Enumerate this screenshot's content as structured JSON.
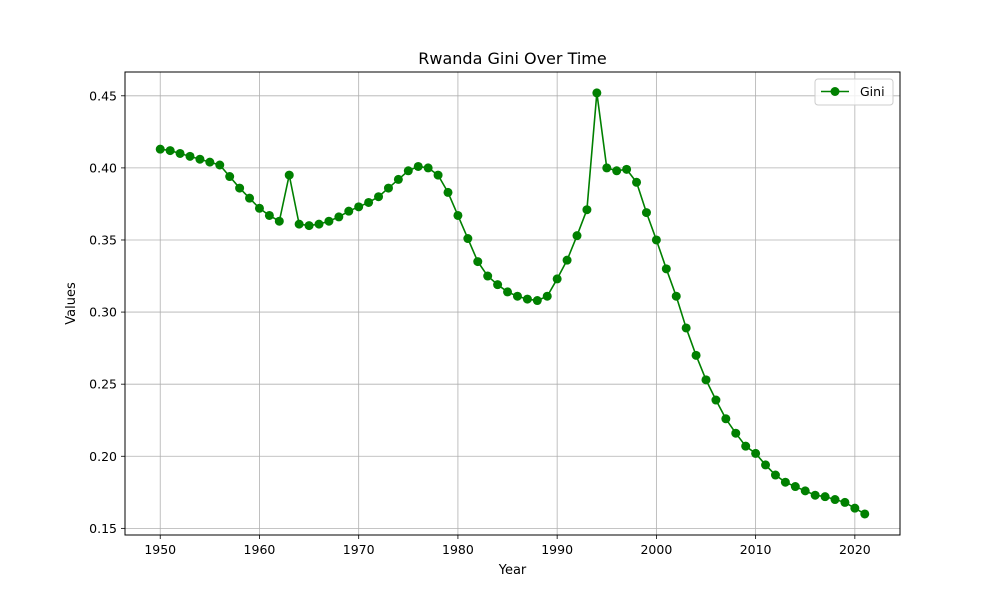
{
  "chart_data": {
    "type": "line",
    "title": "Rwanda Gini Over Time",
    "xlabel": "Year",
    "ylabel": "Values",
    "xlim": [
      1946.45,
      2024.55
    ],
    "ylim": [
      0.1454,
      0.4665
    ],
    "xticks": [
      1950,
      1960,
      1970,
      1980,
      1990,
      2000,
      2010,
      2020
    ],
    "yticks": [
      0.15,
      0.2,
      0.25,
      0.3,
      0.35,
      0.4,
      0.45
    ],
    "ytick_labels": [
      "0.15",
      "0.20",
      "0.25",
      "0.30",
      "0.35",
      "0.40",
      "0.45"
    ],
    "grid": true,
    "legend_position": "top-right",
    "color": "#008000",
    "series": [
      {
        "name": "Gini",
        "x": [
          1950,
          1951,
          1952,
          1953,
          1954,
          1955,
          1956,
          1957,
          1958,
          1959,
          1960,
          1961,
          1962,
          1963,
          1964,
          1965,
          1966,
          1967,
          1968,
          1969,
          1970,
          1971,
          1972,
          1973,
          1974,
          1975,
          1976,
          1977,
          1978,
          1979,
          1980,
          1981,
          1982,
          1983,
          1984,
          1985,
          1986,
          1987,
          1988,
          1989,
          1990,
          1991,
          1992,
          1993,
          1994,
          1995,
          1996,
          1997,
          1998,
          1999,
          2000,
          2001,
          2002,
          2003,
          2004,
          2005,
          2006,
          2007,
          2008,
          2009,
          2010,
          2011,
          2012,
          2013,
          2014,
          2015,
          2016,
          2017,
          2018,
          2019,
          2020,
          2021
        ],
        "values": [
          0.413,
          0.412,
          0.41,
          0.408,
          0.406,
          0.404,
          0.402,
          0.394,
          0.386,
          0.379,
          0.372,
          0.367,
          0.363,
          0.395,
          0.361,
          0.36,
          0.361,
          0.363,
          0.366,
          0.37,
          0.373,
          0.376,
          0.38,
          0.386,
          0.392,
          0.398,
          0.401,
          0.4,
          0.395,
          0.383,
          0.367,
          0.351,
          0.335,
          0.325,
          0.319,
          0.314,
          0.311,
          0.309,
          0.308,
          0.311,
          0.323,
          0.336,
          0.353,
          0.371,
          0.452,
          0.4,
          0.398,
          0.399,
          0.39,
          0.369,
          0.35,
          0.33,
          0.311,
          0.289,
          0.27,
          0.253,
          0.239,
          0.226,
          0.216,
          0.207,
          0.202,
          0.194,
          0.187,
          0.182,
          0.179,
          0.176,
          0.173,
          0.172,
          0.17,
          0.168,
          0.164,
          0.16
        ]
      }
    ]
  }
}
